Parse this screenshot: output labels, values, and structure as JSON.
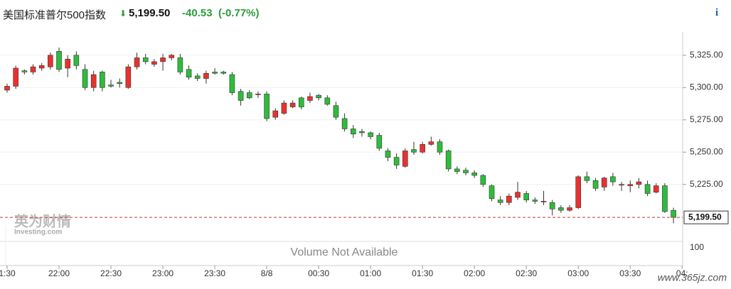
{
  "header": {
    "name": "美国标准普尔500指数",
    "price": "5,199.50",
    "change": "-40.53",
    "change_pct": "(-0.77%)",
    "info": "i"
  },
  "chart_data": {
    "type": "candlestick",
    "open": [
      5298,
      5301,
      5313,
      5312,
      5315,
      5316,
      5328,
      5315,
      5325,
      5314,
      5300,
      5312,
      5302,
      5304,
      5300,
      5316,
      5323,
      5318,
      5320,
      5323,
      5323,
      5314,
      5309,
      5307,
      5312,
      5312,
      5310,
      5297,
      5296,
      5295,
      5295,
      5277,
      5280,
      5285,
      5292,
      5290,
      5294,
      5292,
      5286,
      5276,
      5268,
      5266,
      5265,
      5263,
      5251,
      5246,
      5239,
      5252,
      5250,
      5256,
      5258,
      5251,
      5237,
      5236,
      5234,
      5232,
      5224,
      5213,
      5211,
      5215,
      5218,
      5213,
      5212,
      5211,
      5207,
      5205,
      5207,
      5231,
      5228,
      5223,
      5231,
      5225,
      5224,
      5225,
      5225,
      5219,
      5224,
      5205
    ],
    "high": [
      5303,
      5317,
      5314,
      5318,
      5319,
      5327,
      5331,
      5325,
      5328,
      5318,
      5313,
      5313,
      5306,
      5307,
      5318,
      5327,
      5326,
      5322,
      5326,
      5326,
      5326,
      5317,
      5311,
      5313,
      5315,
      5313,
      5312,
      5299,
      5298,
      5297,
      5297,
      5284,
      5290,
      5290,
      5293,
      5296,
      5295,
      5294,
      5289,
      5280,
      5271,
      5268,
      5266,
      5265,
      5253,
      5249,
      5253,
      5258,
      5258,
      5262,
      5260,
      5252,
      5239,
      5238,
      5236,
      5233,
      5225,
      5216,
      5218,
      5227,
      5220,
      5215,
      5220,
      5213,
      5209,
      5209,
      5232,
      5235,
      5230,
      5231,
      5234,
      5227,
      5228,
      5230,
      5228,
      5226,
      5226,
      5207
    ],
    "low": [
      5296,
      5299,
      5310,
      5310,
      5313,
      5314,
      5312,
      5308,
      5314,
      5298,
      5297,
      5297,
      5300,
      5300,
      5299,
      5314,
      5318,
      5316,
      5313,
      5321,
      5310,
      5306,
      5305,
      5303,
      5310,
      5310,
      5294,
      5286,
      5291,
      5292,
      5274,
      5275,
      5279,
      5284,
      5283,
      5288,
      5290,
      5286,
      5275,
      5266,
      5261,
      5262,
      5260,
      5251,
      5243,
      5237,
      5238,
      5248,
      5249,
      5255,
      5248,
      5235,
      5233,
      5232,
      5230,
      5223,
      5212,
      5209,
      5209,
      5213,
      5211,
      5210,
      5209,
      5201,
      5203,
      5204,
      5206,
      5226,
      5220,
      5220,
      5224,
      5220,
      5219,
      5222,
      5216,
      5218,
      5203,
      5195
    ],
    "close": [
      5301,
      5315,
      5312,
      5316,
      5317,
      5325,
      5314,
      5322,
      5317,
      5300,
      5310,
      5300,
      5301,
      5303,
      5316,
      5323,
      5320,
      5320,
      5323,
      5325,
      5312,
      5308,
      5307,
      5311,
      5311,
      5311,
      5296,
      5290,
      5292,
      5295,
      5276,
      5282,
      5288,
      5288,
      5285,
      5293,
      5292,
      5287,
      5277,
      5268,
      5264,
      5265,
      5262,
      5253,
      5246,
      5240,
      5251,
      5250,
      5256,
      5258,
      5250,
      5237,
      5235,
      5234,
      5232,
      5225,
      5214,
      5211,
      5216,
      5219,
      5213,
      5212,
      5212,
      5206,
      5205,
      5207,
      5231,
      5228,
      5222,
      5230,
      5227,
      5225,
      5225,
      5227,
      5218,
      5224,
      5204,
      5199.5
    ],
    "xticks": [
      {
        "value": 0,
        "label": "1:30"
      },
      {
        "value": 6,
        "label": "22:00"
      },
      {
        "value": 12,
        "label": "22:30"
      },
      {
        "value": 18,
        "label": "23:00"
      },
      {
        "value": 24,
        "label": "23:30"
      },
      {
        "value": 30,
        "label": "8/8"
      },
      {
        "value": 36,
        "label": "00:30"
      },
      {
        "value": 42,
        "label": "01:00"
      },
      {
        "value": 48,
        "label": "01:30"
      },
      {
        "value": 54,
        "label": "02:00"
      },
      {
        "value": 60,
        "label": "02:30"
      },
      {
        "value": 66,
        "label": "03:00"
      },
      {
        "value": 72,
        "label": "03:30"
      },
      {
        "value": 78,
        "label": "04:"
      }
    ],
    "ylim": [
      5193,
      5343
    ],
    "yticks": [
      {
        "value": 5225,
        "label": "5,225.00"
      },
      {
        "value": 5250,
        "label": "5,250.00"
      },
      {
        "value": 5275,
        "label": "5,275.00"
      },
      {
        "value": 5300,
        "label": "5,300.00"
      },
      {
        "value": 5325,
        "label": "5,325.00"
      }
    ],
    "last_price": {
      "value": 5199.5,
      "label": "5,199.50"
    },
    "up_color": "#e8322e",
    "down_color": "#2dbd3a",
    "volume_note": "Volume Not Available",
    "volume_yticks": [
      100
    ],
    "watermark": "英为财情",
    "watermark_sub": "Investing.com",
    "site": "www.365jz.com"
  }
}
